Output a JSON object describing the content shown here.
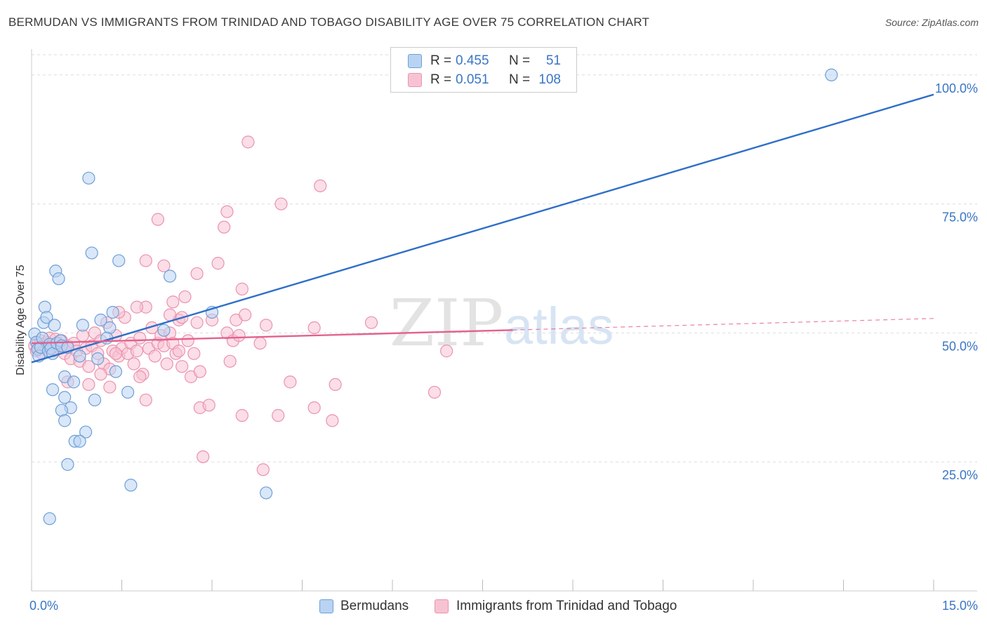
{
  "title": "BERMUDAN VS IMMIGRANTS FROM TRINIDAD AND TOBAGO DISABILITY AGE OVER 75 CORRELATION CHART",
  "source": "Source: ZipAtlas.com",
  "watermark": {
    "zip": "ZIP",
    "atlas": "atlas"
  },
  "colors": {
    "blue_fill": "#b9d3f2",
    "blue_stroke": "#6e9fd8",
    "blue_line": "#2f6fc8",
    "pink_fill": "#f7c3d3",
    "pink_stroke": "#ea93ae",
    "pink_line": "#e3618e",
    "axis_label": "#3a75c4",
    "grid": "#dddddd"
  },
  "stats": [
    {
      "r_label": "R =",
      "r_value": "0.455",
      "n_label": "N =",
      "n_value": "51"
    },
    {
      "r_label": "R =",
      "r_value": "0.051",
      "n_label": "N =",
      "n_value": "108"
    }
  ],
  "legend": [
    {
      "label": "Bermudans"
    },
    {
      "label": "Immigrants from Trinidad and Tobago"
    }
  ],
  "chart_data": {
    "type": "scatter",
    "xlabel": "",
    "ylabel": "Disability Age Over 75",
    "xlim": [
      0,
      15
    ],
    "ylim": [
      0,
      105
    ],
    "x_ticks": [
      0,
      1.5,
      3,
      4.5,
      6,
      7.5,
      9,
      10.5,
      12,
      13.5,
      15
    ],
    "x_tick_labels": [
      {
        "value": 0,
        "label": "0.0%"
      },
      {
        "value": 15,
        "label": "15.0%"
      }
    ],
    "y_tick_labels": [
      {
        "value": 25,
        "label": "25.0%"
      },
      {
        "value": 50,
        "label": "50.0%"
      },
      {
        "value": 75,
        "label": "75.0%"
      },
      {
        "value": 100,
        "label": "100.0%"
      }
    ],
    "grid": true,
    "series": [
      {
        "name": "Bermudans",
        "color": "blue",
        "trend": {
          "x0": 0,
          "y0": 44.3,
          "x1": 15,
          "y1": 96.2,
          "dash_from": null
        },
        "points": [
          [
            0.05,
            49.8
          ],
          [
            0.08,
            48.2
          ],
          [
            0.1,
            46.8
          ],
          [
            0.12,
            45.5
          ],
          [
            0.15,
            47.2
          ],
          [
            0.18,
            49.0
          ],
          [
            0.2,
            52.0
          ],
          [
            0.22,
            55.0
          ],
          [
            0.25,
            53.0
          ],
          [
            0.28,
            46.5
          ],
          [
            0.3,
            47.8
          ],
          [
            0.32,
            47.0
          ],
          [
            0.35,
            46.0
          ],
          [
            0.38,
            51.5
          ],
          [
            0.4,
            62.0
          ],
          [
            0.42,
            48.0
          ],
          [
            0.45,
            60.5
          ],
          [
            0.48,
            48.5
          ],
          [
            0.5,
            47.5
          ],
          [
            0.55,
            41.5
          ],
          [
            0.6,
            47.2
          ],
          [
            0.65,
            35.5
          ],
          [
            0.7,
            40.5
          ],
          [
            0.8,
            45.5
          ],
          [
            0.85,
            51.5
          ],
          [
            0.9,
            30.8
          ],
          [
            0.95,
            80.0
          ],
          [
            1.0,
            65.5
          ],
          [
            1.1,
            45.0
          ],
          [
            1.15,
            52.5
          ],
          [
            1.3,
            51.0
          ],
          [
            1.35,
            54.0
          ],
          [
            1.4,
            42.5
          ],
          [
            1.45,
            64.0
          ],
          [
            1.6,
            38.5
          ],
          [
            0.35,
            39.0
          ],
          [
            0.5,
            35.0
          ],
          [
            0.55,
            33.0
          ],
          [
            0.55,
            37.5
          ],
          [
            0.6,
            24.5
          ],
          [
            0.72,
            29.0
          ],
          [
            0.8,
            29.0
          ],
          [
            1.05,
            37.0
          ],
          [
            1.65,
            20.5
          ],
          [
            2.2,
            50.5
          ],
          [
            2.3,
            61.0
          ],
          [
            3.0,
            54.0
          ],
          [
            3.9,
            19.0
          ],
          [
            0.3,
            14.0
          ],
          [
            13.3,
            100.0
          ],
          [
            1.25,
            49.0
          ]
        ]
      },
      {
        "name": "Immigrants from Trinidad and Tobago",
        "color": "pink",
        "trend": {
          "x0": 0,
          "y0": 48.0,
          "x1": 15,
          "y1": 52.8,
          "dash_from": 8.0
        },
        "points": [
          [
            0.05,
            47.5
          ],
          [
            0.08,
            46.5
          ],
          [
            0.1,
            48.0
          ],
          [
            0.12,
            47.0
          ],
          [
            0.15,
            48.5
          ],
          [
            0.18,
            46.0
          ],
          [
            0.2,
            47.8
          ],
          [
            0.25,
            48.2
          ],
          [
            0.28,
            47.0
          ],
          [
            0.3,
            49.0
          ],
          [
            0.35,
            47.5
          ],
          [
            0.38,
            46.5
          ],
          [
            0.4,
            48.8
          ],
          [
            0.45,
            47.2
          ],
          [
            0.5,
            48.5
          ],
          [
            0.55,
            46.0
          ],
          [
            0.6,
            47.5
          ],
          [
            0.65,
            45.0
          ],
          [
            0.7,
            48.0
          ],
          [
            0.75,
            46.5
          ],
          [
            0.8,
            44.5
          ],
          [
            0.85,
            49.5
          ],
          [
            0.9,
            47.0
          ],
          [
            0.95,
            43.5
          ],
          [
            1.0,
            47.5
          ],
          [
            1.05,
            50.0
          ],
          [
            1.1,
            46.0
          ],
          [
            1.15,
            48.5
          ],
          [
            1.2,
            44.0
          ],
          [
            1.25,
            52.0
          ],
          [
            1.3,
            43.0
          ],
          [
            1.35,
            46.5
          ],
          [
            1.4,
            49.5
          ],
          [
            1.45,
            45.5
          ],
          [
            1.5,
            47.0
          ],
          [
            1.55,
            53.0
          ],
          [
            1.6,
            46.0
          ],
          [
            1.65,
            48.0
          ],
          [
            1.7,
            44.0
          ],
          [
            1.75,
            46.5
          ],
          [
            1.8,
            49.0
          ],
          [
            1.85,
            42.0
          ],
          [
            1.9,
            55.0
          ],
          [
            1.95,
            47.0
          ],
          [
            2.0,
            51.0
          ],
          [
            2.05,
            45.5
          ],
          [
            2.1,
            48.0
          ],
          [
            2.15,
            49.5
          ],
          [
            2.2,
            47.5
          ],
          [
            2.25,
            44.0
          ],
          [
            2.3,
            50.0
          ],
          [
            2.35,
            56.0
          ],
          [
            2.4,
            46.0
          ],
          [
            2.45,
            52.5
          ],
          [
            2.5,
            43.5
          ],
          [
            2.55,
            57.0
          ],
          [
            2.6,
            48.5
          ],
          [
            2.65,
            41.5
          ],
          [
            2.7,
            46.0
          ],
          [
            2.75,
            52.0
          ],
          [
            0.6,
            40.5
          ],
          [
            0.95,
            40.0
          ],
          [
            1.15,
            42.0
          ],
          [
            1.4,
            46.0
          ],
          [
            1.45,
            54.0
          ],
          [
            1.75,
            55.0
          ],
          [
            1.8,
            41.5
          ],
          [
            1.9,
            37.0
          ],
          [
            1.9,
            64.0
          ],
          [
            2.1,
            72.0
          ],
          [
            2.2,
            63.0
          ],
          [
            2.3,
            53.5
          ],
          [
            2.35,
            48.0
          ],
          [
            2.45,
            46.5
          ],
          [
            2.5,
            53.0
          ],
          [
            2.75,
            61.5
          ],
          [
            2.8,
            35.5
          ],
          [
            2.8,
            42.5
          ],
          [
            2.85,
            26.0
          ],
          [
            2.95,
            36.0
          ],
          [
            3.0,
            52.5
          ],
          [
            3.1,
            63.5
          ],
          [
            3.2,
            70.5
          ],
          [
            3.25,
            73.5
          ],
          [
            3.25,
            50.0
          ],
          [
            3.3,
            44.5
          ],
          [
            3.35,
            48.5
          ],
          [
            3.4,
            52.5
          ],
          [
            3.45,
            49.5
          ],
          [
            3.5,
            58.5
          ],
          [
            3.5,
            34.0
          ],
          [
            3.55,
            53.5
          ],
          [
            3.6,
            87.0
          ],
          [
            3.8,
            48.0
          ],
          [
            3.85,
            23.5
          ],
          [
            3.9,
            51.5
          ],
          [
            4.1,
            34.0
          ],
          [
            4.15,
            75.0
          ],
          [
            4.3,
            40.5
          ],
          [
            4.7,
            35.5
          ],
          [
            4.7,
            51.0
          ],
          [
            4.8,
            78.5
          ],
          [
            5.0,
            33.0
          ],
          [
            5.05,
            40.0
          ],
          [
            5.65,
            52.0
          ],
          [
            6.7,
            38.5
          ],
          [
            6.9,
            46.5
          ],
          [
            1.3,
            39.5
          ]
        ]
      }
    ]
  }
}
